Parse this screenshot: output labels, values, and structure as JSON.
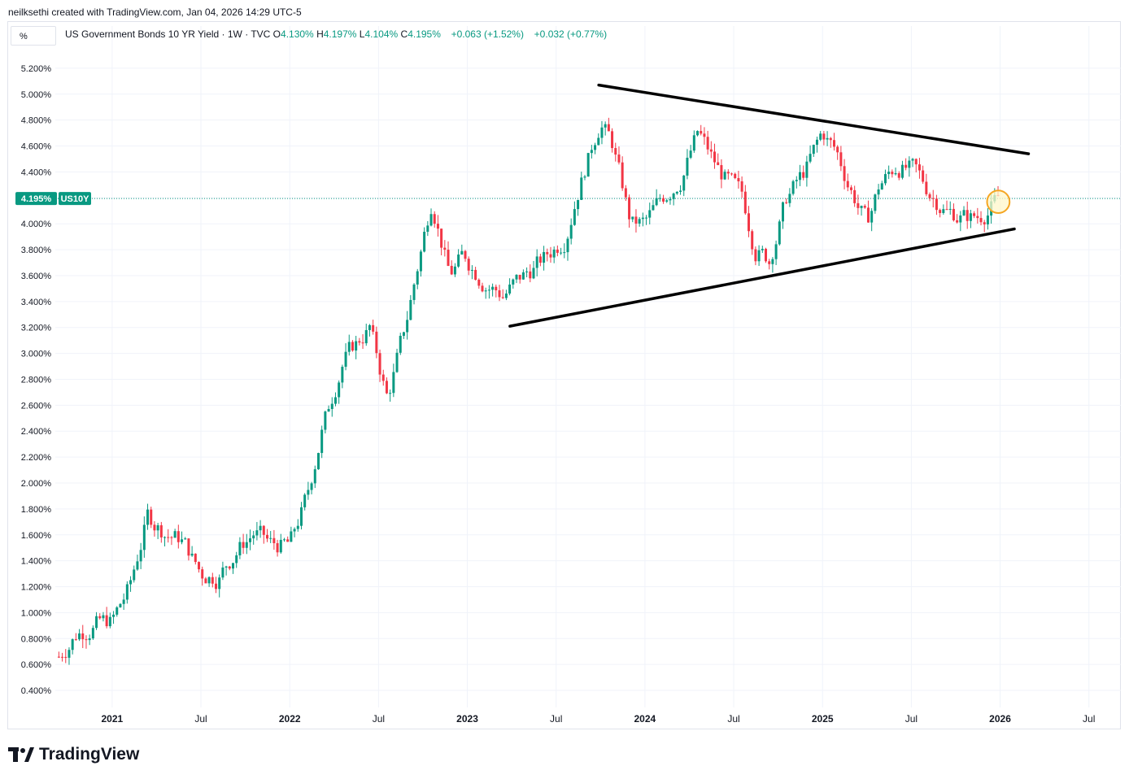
{
  "attribution": "neilksethi created with TradingView.com, Jan 04, 2026 14:29 UTC-5",
  "unit_button": "%",
  "legend": {
    "title": "US Government Bonds 10 YR Yield · 1W · TVC",
    "o_label": "O",
    "o_value": "4.130%",
    "h_label": "H",
    "h_value": "4.197%",
    "l_label": "L",
    "l_value": "4.104%",
    "c_label": "C",
    "c_value": "4.195%",
    "change": "+0.063 (+1.52%)",
    "change2": "+0.032 (+0.77%)"
  },
  "brand": "TradingView",
  "colors": {
    "up": "#089981",
    "down": "#f23645",
    "grid": "#f0f3fa",
    "trendline": "#000000",
    "highlight_stroke": "#f5a623",
    "highlight_fill": "#fff7c9"
  },
  "chart_data": {
    "type": "candlestick",
    "symbol": "US10Y",
    "title": "US Government Bonds 10 YR Yield · 1W · TVC",
    "timeframe": "1W",
    "last_price": 4.195,
    "last_price_label": "4.195%",
    "symbol_label": "US10Y",
    "ylim": [
      0.3,
      5.35
    ],
    "y_ticks": [
      0.4,
      0.6,
      0.8,
      1.0,
      1.2,
      1.4,
      1.6,
      1.8,
      2.0,
      2.2,
      2.4,
      2.6,
      2.8,
      3.0,
      3.2,
      3.4,
      3.6,
      3.8,
      4.0,
      4.2,
      4.4,
      4.6,
      4.8,
      5.0,
      5.2
    ],
    "y_tick_labels": [
      "0.400%",
      "0.600%",
      "0.800%",
      "1.000%",
      "1.200%",
      "1.400%",
      "1.600%",
      "1.800%",
      "2.000%",
      "2.200%",
      "2.400%",
      "2.600%",
      "2.800%",
      "3.000%",
      "3.200%",
      "3.400%",
      "3.600%",
      "3.800%",
      "4.000%",
      "4.200%",
      "4.400%",
      "4.600%",
      "4.800%",
      "5.000%",
      "5.200%"
    ],
    "x_range": [
      2020.68,
      2026.68
    ],
    "x_ticks": [
      {
        "t": 2021.0,
        "label": "2021",
        "major": true
      },
      {
        "t": 2021.5,
        "label": "Jul",
        "major": false
      },
      {
        "t": 2022.0,
        "label": "2022",
        "major": true
      },
      {
        "t": 2022.5,
        "label": "Jul",
        "major": false
      },
      {
        "t": 2023.0,
        "label": "2023",
        "major": true
      },
      {
        "t": 2023.5,
        "label": "Jul",
        "major": false
      },
      {
        "t": 2024.0,
        "label": "2024",
        "major": true
      },
      {
        "t": 2024.5,
        "label": "Jul",
        "major": false
      },
      {
        "t": 2025.0,
        "label": "2025",
        "major": true
      },
      {
        "t": 2025.5,
        "label": "Jul",
        "major": false
      },
      {
        "t": 2026.0,
        "label": "2026",
        "major": true
      },
      {
        "t": 2026.5,
        "label": "Jul",
        "major": false
      }
    ],
    "path_points": [
      [
        2020.7,
        0.66
      ],
      [
        2020.8,
        0.84
      ],
      [
        2020.92,
        0.92
      ],
      [
        2021.0,
        0.93
      ],
      [
        2021.1,
        1.2
      ],
      [
        2021.2,
        1.74
      ],
      [
        2021.3,
        1.62
      ],
      [
        2021.4,
        1.55
      ],
      [
        2021.5,
        1.3
      ],
      [
        2021.6,
        1.28
      ],
      [
        2021.7,
        1.48
      ],
      [
        2021.8,
        1.62
      ],
      [
        2021.9,
        1.52
      ],
      [
        2022.0,
        1.52
      ],
      [
        2022.1,
        1.9
      ],
      [
        2022.18,
        2.4
      ],
      [
        2022.3,
        2.95
      ],
      [
        2022.45,
        3.2
      ],
      [
        2022.55,
        2.65
      ],
      [
        2022.65,
        3.2
      ],
      [
        2022.8,
        4.2
      ],
      [
        2022.9,
        3.6
      ],
      [
        2022.98,
        3.75
      ],
      [
        2023.1,
        3.55
      ],
      [
        2023.2,
        3.45
      ],
      [
        2023.32,
        3.6
      ],
      [
        2023.45,
        3.75
      ],
      [
        2023.55,
        3.9
      ],
      [
        2023.62,
        4.25
      ],
      [
        2023.75,
        4.8
      ],
      [
        2023.82,
        4.6
      ],
      [
        2023.92,
        4.0
      ],
      [
        2024.0,
        4.0
      ],
      [
        2024.1,
        4.2
      ],
      [
        2024.2,
        4.35
      ],
      [
        2024.3,
        4.7
      ],
      [
        2024.42,
        4.4
      ],
      [
        2024.55,
        4.2
      ],
      [
        2024.62,
        3.82
      ],
      [
        2024.7,
        3.72
      ],
      [
        2024.8,
        4.2
      ],
      [
        2024.9,
        4.4
      ],
      [
        2025.0,
        4.7
      ],
      [
        2025.08,
        4.55
      ],
      [
        2025.15,
        4.3
      ],
      [
        2025.25,
        4.0
      ],
      [
        2025.32,
        4.3
      ],
      [
        2025.42,
        4.45
      ],
      [
        2025.52,
        4.4
      ],
      [
        2025.6,
        4.25
      ],
      [
        2025.7,
        4.1
      ],
      [
        2025.8,
        4.05
      ],
      [
        2025.88,
        4.05
      ],
      [
        2025.96,
        4.15
      ],
      [
        2026.0,
        4.195
      ]
    ],
    "trendlines": [
      {
        "name": "upper-resistance",
        "start": [
          2023.74,
          5.07
        ],
        "end": [
          2026.16,
          4.54
        ]
      },
      {
        "name": "lower-support",
        "start": [
          2023.24,
          3.21
        ],
        "end": [
          2026.08,
          3.96
        ]
      }
    ],
    "highlight": {
      "center": [
        2025.99,
        4.17
      ],
      "radius_in_weeks": 3.3
    }
  }
}
